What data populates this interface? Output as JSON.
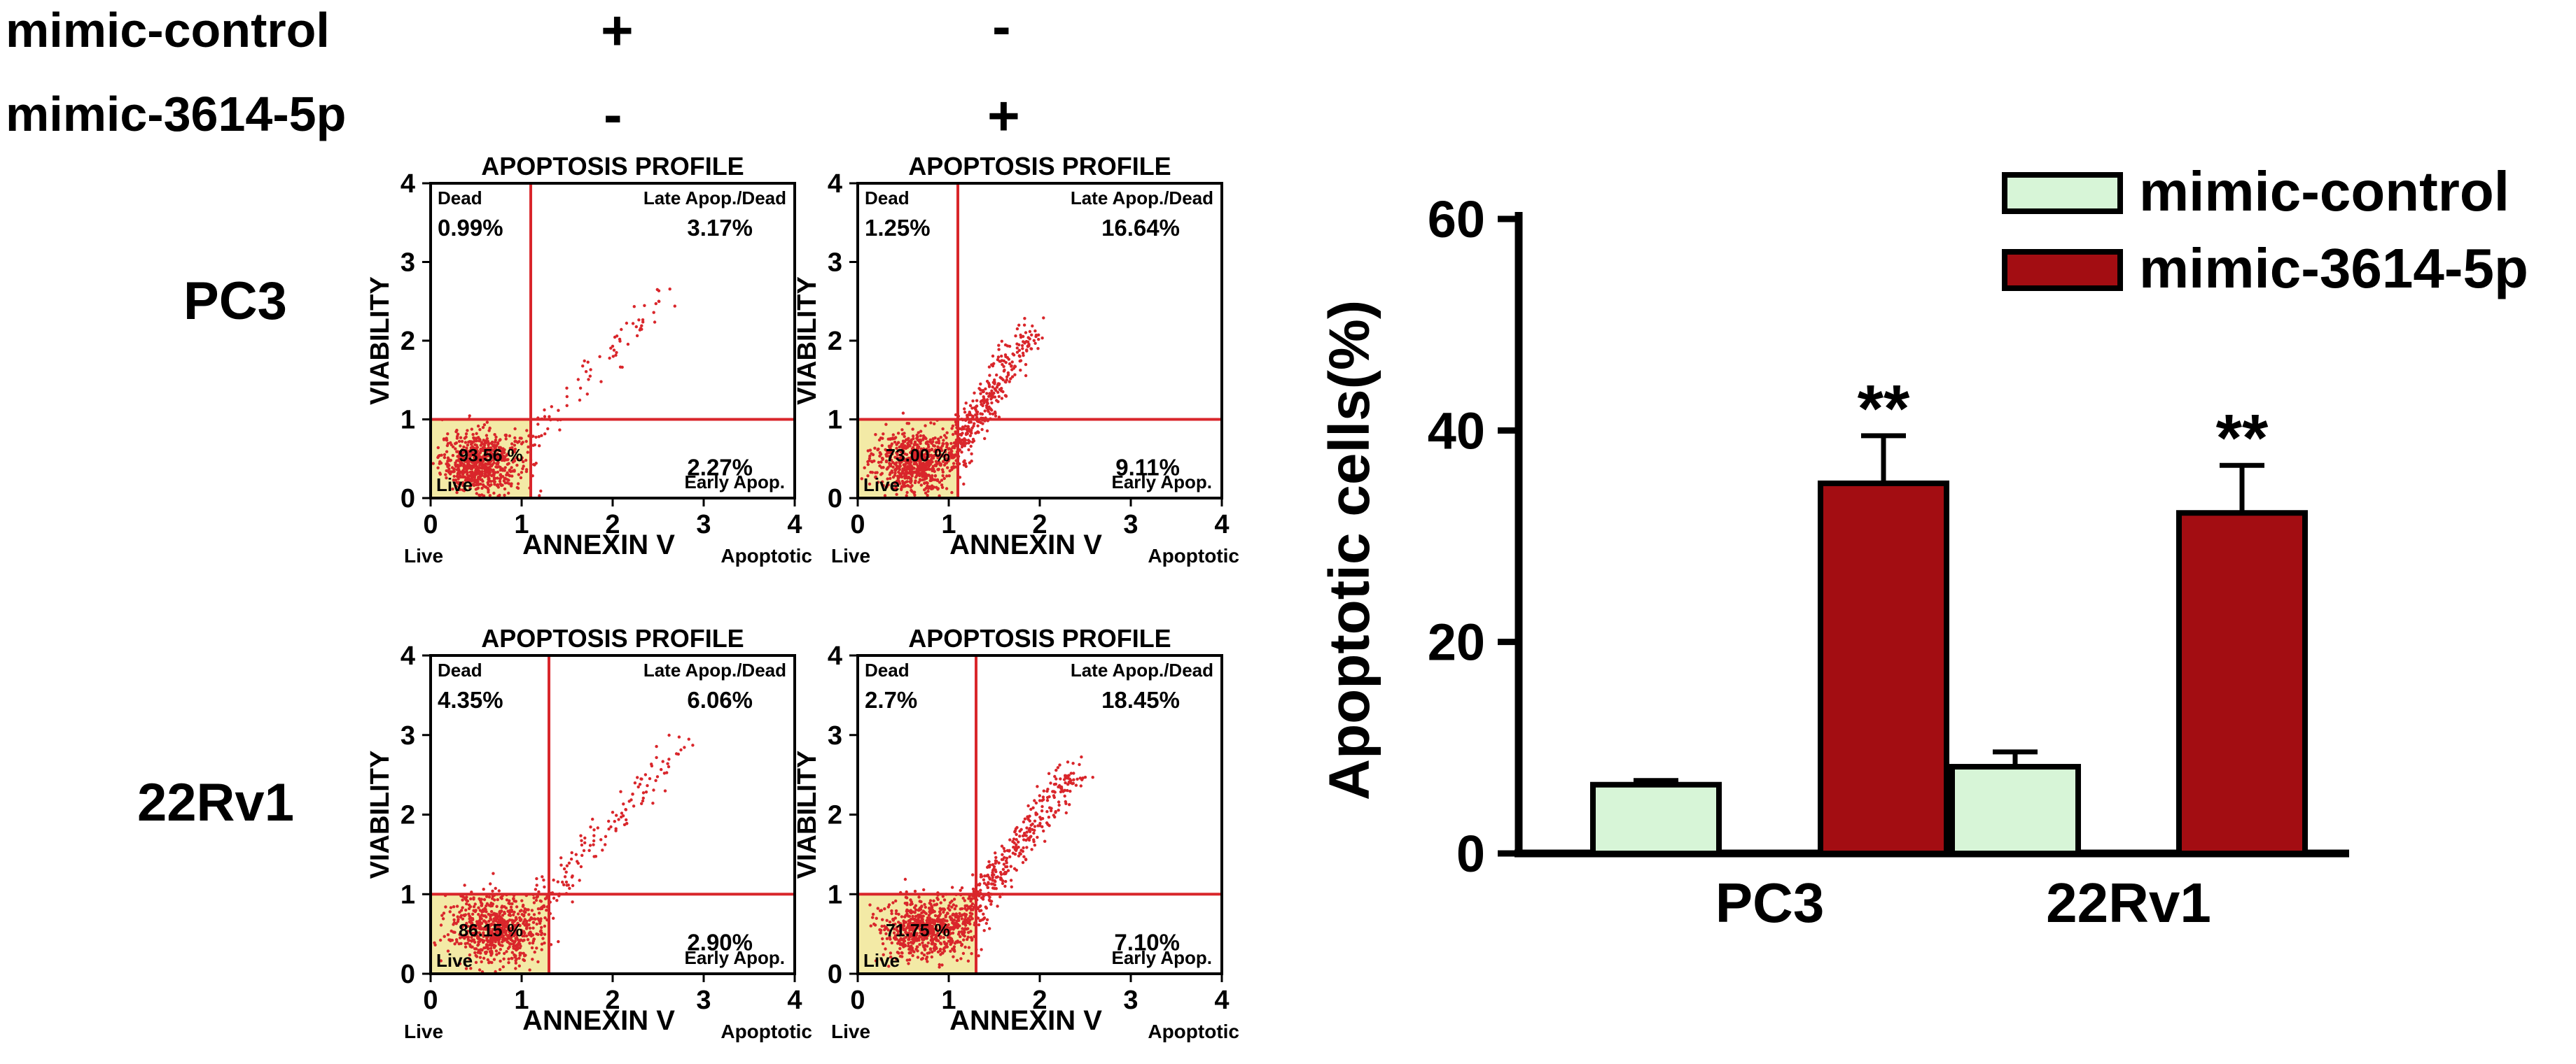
{
  "treatments": {
    "rows": [
      {
        "label": "mimic-control",
        "col1": "+",
        "col2": "-"
      },
      {
        "label": "mimic-3614-5p",
        "col1": "-",
        "col2": "+"
      }
    ]
  },
  "cell_lines": [
    "PC3",
    "22Rv1"
  ],
  "colors": {
    "control": "#d7f5d7",
    "treated": "#a30d12",
    "gate": "#d9262b",
    "live_box": "#f3eaa6",
    "axis": "#000000"
  },
  "chart_data": [
    {
      "type": "scatter",
      "panel": "PC3 mimic-control",
      "title": "APOPTOSIS PROFILE",
      "xlabel": "ANNEXIN V",
      "ylabel": "VIABILITY",
      "x_left_label": "Live",
      "x_right_label": "Apoptotic",
      "xlim": [
        0,
        4
      ],
      "ylim": [
        0,
        4
      ],
      "xticks": [
        "0",
        "1",
        "2",
        "3",
        "4"
      ],
      "yticks": [
        "0",
        "1",
        "2",
        "3",
        "4"
      ],
      "gate_x": 1.1,
      "gate_y": 1.0,
      "quadrants": {
        "dead": {
          "name": "Dead",
          "value": "0.99%"
        },
        "late": {
          "name": "Late Apop./Dead",
          "value": "3.17%"
        },
        "early": {
          "name": "Early Apop.",
          "value": "2.27%"
        },
        "live": {
          "name": "Live",
          "value": "93.56 %"
        }
      },
      "cluster": {
        "cx": 0.55,
        "cy": 0.45,
        "sx": 0.22,
        "sy": 0.2,
        "n": 700,
        "tail": 90,
        "tail_x": [
          1.0,
          2.6
        ],
        "tail_y": [
          0.6,
          2.6
        ]
      }
    },
    {
      "type": "scatter",
      "panel": "PC3 mimic-3614-5p",
      "title": "APOPTOSIS PROFILE",
      "xlabel": "ANNEXIN V",
      "ylabel": "VIABILITY",
      "x_left_label": "Live",
      "x_right_label": "Apoptotic",
      "xlim": [
        0,
        4
      ],
      "ylim": [
        0,
        4
      ],
      "xticks": [
        "0",
        "1",
        "2",
        "3",
        "4"
      ],
      "yticks": [
        "0",
        "1",
        "2",
        "3",
        "4"
      ],
      "gate_x": 1.1,
      "gate_y": 1.0,
      "quadrants": {
        "dead": {
          "name": "Dead",
          "value": "1.25%"
        },
        "late": {
          "name": "Late Apop./Dead",
          "value": "16.64%"
        },
        "early": {
          "name": "Early Apop.",
          "value": "9.11%"
        },
        "live": {
          "name": "Live",
          "value": "73.00 %"
        }
      },
      "cluster": {
        "cx": 0.6,
        "cy": 0.45,
        "sx": 0.22,
        "sy": 0.2,
        "n": 650,
        "tail": 380,
        "tail_x": [
          1.0,
          1.9
        ],
        "tail_y": [
          0.5,
          2.1
        ]
      }
    },
    {
      "type": "scatter",
      "panel": "22Rv1 mimic-control",
      "title": "APOPTOSIS PROFILE",
      "xlabel": "ANNEXIN V",
      "ylabel": "VIABILITY",
      "x_left_label": "Live",
      "x_right_label": "Apoptotic",
      "xlim": [
        0,
        4
      ],
      "ylim": [
        0,
        4
      ],
      "xticks": [
        "0",
        "1",
        "2",
        "3",
        "4"
      ],
      "yticks": [
        "0",
        "1",
        "2",
        "3",
        "4"
      ],
      "gate_x": 1.3,
      "gate_y": 1.0,
      "quadrants": {
        "dead": {
          "name": "Dead",
          "value": "4.35%"
        },
        "late": {
          "name": "Late Apop./Dead",
          "value": "6.06%"
        },
        "early": {
          "name": "Early Apop.",
          "value": "2.90%"
        },
        "live": {
          "name": "Live",
          "value": "86.15 %"
        }
      },
      "cluster": {
        "cx": 0.7,
        "cy": 0.55,
        "sx": 0.25,
        "sy": 0.22,
        "n": 700,
        "tail": 160,
        "tail_x": [
          1.1,
          2.8
        ],
        "tail_y": [
          0.7,
          3.0
        ]
      }
    },
    {
      "type": "scatter",
      "panel": "22Rv1 mimic-3614-5p",
      "title": "APOPTOSIS PROFILE",
      "xlabel": "ANNEXIN V",
      "ylabel": "VIABILITY",
      "x_left_label": "Live",
      "x_right_label": "Apoptotic",
      "xlim": [
        0,
        4
      ],
      "ylim": [
        0,
        4
      ],
      "xticks": [
        "0",
        "1",
        "2",
        "3",
        "4"
      ],
      "yticks": [
        "0",
        "1",
        "2",
        "3",
        "4"
      ],
      "gate_x": 1.3,
      "gate_y": 1.0,
      "quadrants": {
        "dead": {
          "name": "Dead",
          "value": "2.7%"
        },
        "late": {
          "name": "Late Apop./Dead",
          "value": "18.45%"
        },
        "early": {
          "name": "Early Apop.",
          "value": "7.10%"
        },
        "live": {
          "name": "Live",
          "value": "71.75 %"
        }
      },
      "cluster": {
        "cx": 0.75,
        "cy": 0.55,
        "sx": 0.25,
        "sy": 0.2,
        "n": 650,
        "tail": 380,
        "tail_x": [
          1.1,
          2.4
        ],
        "tail_y": [
          0.6,
          2.6
        ]
      }
    },
    {
      "type": "bar",
      "categories": [
        "PC3",
        "22Rv1"
      ],
      "series": [
        {
          "name": "mimic-control",
          "values": [
            6.5,
            8.2
          ],
          "errors": [
            0.4,
            1.4
          ],
          "significance": [
            "",
            ""
          ]
        },
        {
          "name": "mimic-3614-5p",
          "values": [
            35.0,
            32.2
          ],
          "errors": [
            4.5,
            4.5
          ],
          "significance": [
            "**",
            "**"
          ]
        }
      ],
      "ylabel": "Apoptotic cells(%)",
      "xlabel": "",
      "ylim": [
        0,
        60
      ],
      "yticks": [
        "0",
        "20",
        "40",
        "60"
      ],
      "legend": "top-right"
    }
  ]
}
